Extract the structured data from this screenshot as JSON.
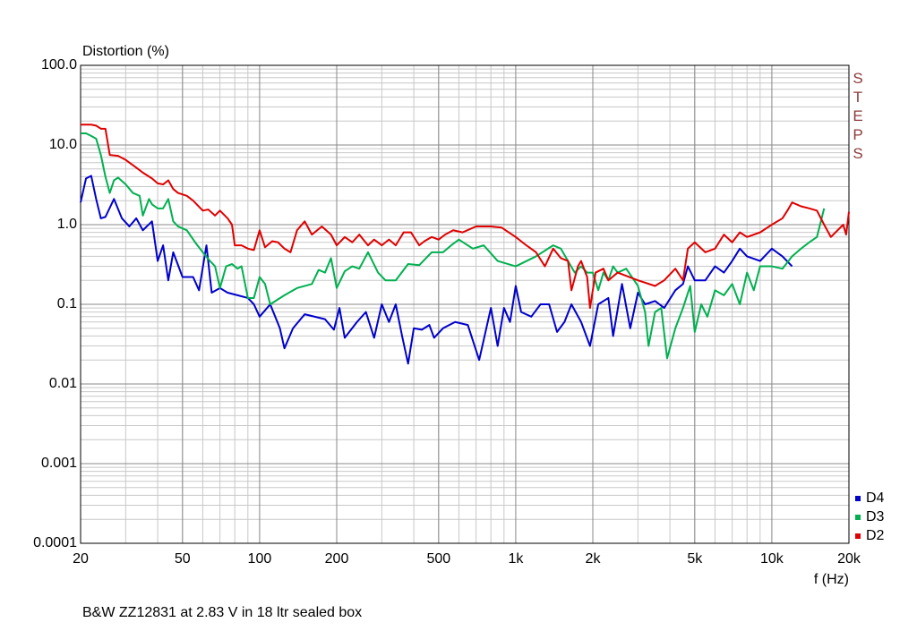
{
  "chart_data": {
    "type": "line",
    "title": "Distortion (%)",
    "x_label": "f (Hz)",
    "caption": "B&W ZZ12831 at 2.83 V in 18 ltr sealed box",
    "watermark": "STEPS",
    "xscale": "log",
    "yscale": "log",
    "grid": true,
    "minor_grid": true,
    "legend": "lower right",
    "xlim": [
      20,
      20000
    ],
    "ylim": [
      0.0001,
      100
    ],
    "xticks": [
      20,
      50,
      100,
      200,
      500,
      {
        "value": 1000,
        "label": "1k"
      },
      {
        "value": 2000,
        "label": "2k"
      },
      {
        "value": 5000,
        "label": "5k"
      },
      {
        "value": 10000,
        "label": "10k"
      },
      {
        "value": 20000,
        "label": "20k"
      }
    ],
    "yticks": [
      {
        "value": 100,
        "label": "100.0"
      },
      {
        "value": 10,
        "label": "10.0"
      },
      {
        "value": 1,
        "label": "1.0"
      },
      0.1,
      0.01,
      0.001,
      0.0001
    ],
    "series": [
      {
        "name": "D4",
        "color": "#0000cc",
        "x": [
          20,
          21,
          22,
          23,
          24,
          25,
          27,
          29,
          31,
          33,
          35,
          38,
          40,
          42,
          44,
          46,
          50,
          55,
          58,
          62,
          65,
          70,
          75,
          82,
          90,
          95,
          100,
          110,
          120,
          125,
          135,
          150,
          180,
          195,
          205,
          215,
          240,
          260,
          280,
          300,
          320,
          340,
          360,
          380,
          400,
          430,
          460,
          480,
          520,
          580,
          650,
          720,
          800,
          850,
          900,
          950,
          1000,
          1050,
          1150,
          1250,
          1350,
          1450,
          1550,
          1650,
          1800,
          1950,
          2100,
          2300,
          2400,
          2600,
          2800,
          3000,
          3200,
          3500,
          3800,
          4200,
          4500,
          4700,
          5000,
          5500,
          6000,
          6500,
          7000,
          7500,
          8000,
          9000,
          10000,
          11000,
          12000
        ],
        "values": [
          1.9,
          3.8,
          4.1,
          2.1,
          1.2,
          1.25,
          2.1,
          1.2,
          0.95,
          1.2,
          0.85,
          1.1,
          0.35,
          0.55,
          0.2,
          0.45,
          0.22,
          0.22,
          0.15,
          0.55,
          0.14,
          0.16,
          0.14,
          0.13,
          0.12,
          0.1,
          0.07,
          0.1,
          0.05,
          0.028,
          0.05,
          0.075,
          0.065,
          0.048,
          0.09,
          0.038,
          0.06,
          0.08,
          0.038,
          0.1,
          0.06,
          0.1,
          0.04,
          0.018,
          0.05,
          0.048,
          0.055,
          0.038,
          0.05,
          0.06,
          0.055,
          0.02,
          0.09,
          0.03,
          0.09,
          0.06,
          0.17,
          0.08,
          0.07,
          0.1,
          0.1,
          0.045,
          0.06,
          0.1,
          0.06,
          0.03,
          0.1,
          0.12,
          0.04,
          0.18,
          0.05,
          0.14,
          0.1,
          0.11,
          0.09,
          0.15,
          0.18,
          0.3,
          0.2,
          0.2,
          0.3,
          0.25,
          0.35,
          0.5,
          0.4,
          0.35,
          0.5,
          0.4,
          0.3
        ]
      },
      {
        "name": "D3",
        "color": "#00b050",
        "x": [
          20,
          21,
          22,
          23,
          24,
          25,
          26,
          27,
          28,
          30,
          32,
          34,
          35,
          37,
          38,
          40,
          42,
          44,
          46,
          48,
          52,
          56,
          60,
          64,
          67,
          70,
          74,
          78,
          82,
          85,
          90,
          95,
          100,
          105,
          110,
          125,
          140,
          160,
          170,
          180,
          190,
          200,
          215,
          230,
          245,
          265,
          290,
          310,
          340,
          380,
          420,
          470,
          520,
          560,
          600,
          680,
          750,
          850,
          1000,
          1200,
          1400,
          1500,
          1600,
          1700,
          1800,
          1900,
          2000,
          2100,
          2200,
          2300,
          2400,
          2500,
          2700,
          2900,
          3000,
          3200,
          3300,
          3500,
          3700,
          3900,
          4200,
          4500,
          4800,
          5000,
          5300,
          5600,
          6000,
          6500,
          7000,
          7500,
          8000,
          8500,
          9000,
          10000,
          11000,
          12000,
          13000,
          14000,
          15000,
          16000
        ],
        "values": [
          14,
          14,
          13,
          12,
          7.5,
          4,
          2.5,
          3.6,
          3.9,
          3.2,
          2.5,
          2.3,
          1.3,
          2.1,
          1.8,
          1.6,
          1.6,
          2.1,
          1.1,
          0.95,
          0.85,
          0.6,
          0.45,
          0.35,
          0.3,
          0.16,
          0.3,
          0.32,
          0.28,
          0.3,
          0.12,
          0.12,
          0.22,
          0.18,
          0.1,
          0.13,
          0.16,
          0.18,
          0.27,
          0.25,
          0.38,
          0.16,
          0.26,
          0.3,
          0.28,
          0.45,
          0.25,
          0.2,
          0.2,
          0.32,
          0.31,
          0.45,
          0.45,
          0.55,
          0.65,
          0.5,
          0.55,
          0.35,
          0.3,
          0.4,
          0.55,
          0.5,
          0.35,
          0.25,
          0.3,
          0.25,
          0.25,
          0.15,
          0.25,
          0.2,
          0.3,
          0.25,
          0.28,
          0.2,
          0.17,
          0.08,
          0.03,
          0.08,
          0.09,
          0.021,
          0.05,
          0.09,
          0.17,
          0.045,
          0.1,
          0.07,
          0.15,
          0.13,
          0.18,
          0.1,
          0.25,
          0.15,
          0.3,
          0.3,
          0.28,
          0.4,
          0.5,
          0.6,
          0.7,
          1.6
        ]
      },
      {
        "name": "D2",
        "color": "#e00000",
        "x": [
          20,
          22,
          23,
          24,
          25,
          26,
          28,
          30,
          33,
          35,
          38,
          40,
          42,
          44,
          46,
          48,
          52,
          55,
          60,
          63,
          67,
          70,
          75,
          78,
          80,
          85,
          90,
          95,
          100,
          105,
          112,
          118,
          125,
          132,
          140,
          150,
          160,
          175,
          190,
          200,
          215,
          230,
          245,
          265,
          280,
          300,
          320,
          340,
          365,
          390,
          420,
          440,
          470,
          500,
          530,
          570,
          620,
          700,
          800,
          880,
          1000,
          1100,
          1200,
          1300,
          1400,
          1500,
          1600,
          1650,
          1750,
          1800,
          1900,
          1950,
          2050,
          2200,
          2300,
          2500,
          3000,
          3500,
          3800,
          4200,
          4500,
          4700,
          5000,
          5500,
          6000,
          6500,
          7000,
          7500,
          8000,
          9000,
          10000,
          11000,
          11500,
          12000,
          13000,
          14000,
          15000,
          16000,
          17000,
          19000,
          19500,
          20000
        ],
        "values": [
          18,
          18,
          17.5,
          16,
          16,
          7.5,
          7.3,
          6.5,
          5.2,
          4.5,
          3.8,
          3.3,
          3.2,
          3.6,
          2.8,
          2.5,
          2.3,
          2,
          1.5,
          1.55,
          1.3,
          1.5,
          1.2,
          1,
          0.55,
          0.55,
          0.5,
          0.48,
          0.85,
          0.52,
          0.62,
          0.6,
          0.5,
          0.45,
          0.85,
          1.1,
          0.75,
          0.95,
          0.75,
          0.55,
          0.7,
          0.6,
          0.75,
          0.55,
          0.65,
          0.55,
          0.65,
          0.55,
          0.8,
          0.8,
          0.55,
          0.62,
          0.7,
          0.65,
          0.75,
          0.85,
          0.8,
          0.95,
          0.95,
          0.92,
          0.7,
          0.55,
          0.45,
          0.3,
          0.5,
          0.38,
          0.35,
          0.15,
          0.3,
          0.35,
          0.22,
          0.09,
          0.25,
          0.28,
          0.2,
          0.25,
          0.2,
          0.17,
          0.2,
          0.28,
          0.2,
          0.5,
          0.6,
          0.45,
          0.5,
          0.75,
          0.6,
          0.8,
          0.7,
          0.8,
          1,
          1.2,
          1.5,
          1.9,
          1.7,
          1.6,
          1.5,
          1,
          0.7,
          1,
          0.75,
          1.45
        ]
      }
    ]
  }
}
